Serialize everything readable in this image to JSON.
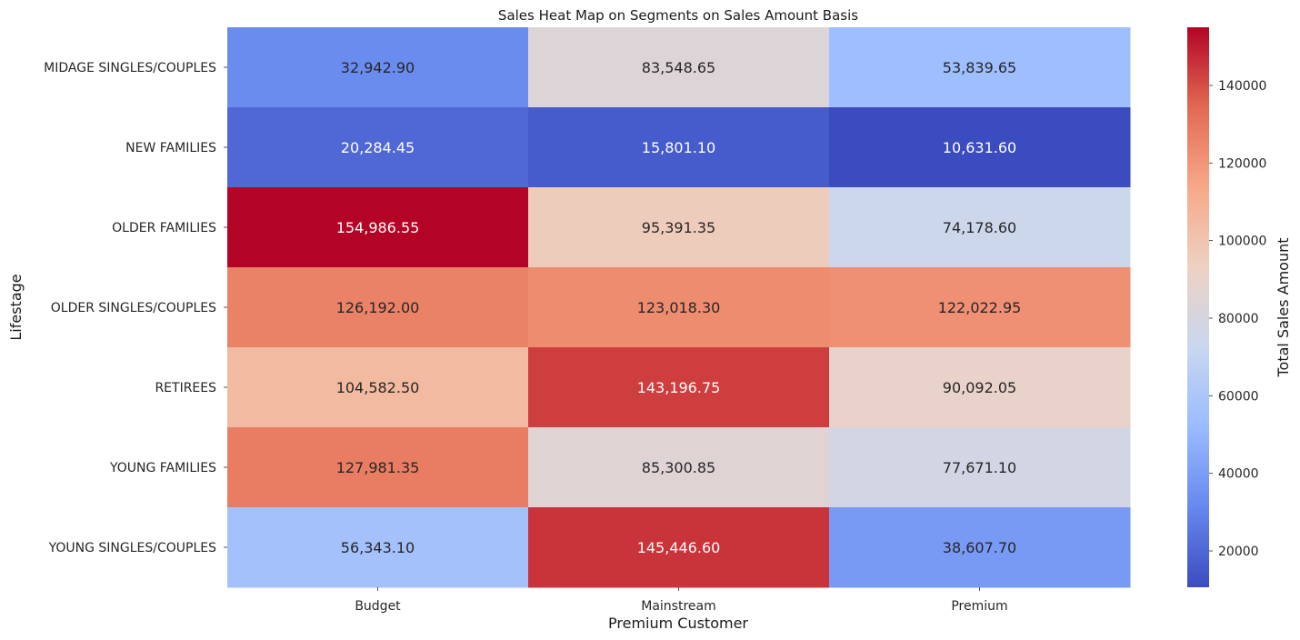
{
  "chart_data": {
    "type": "heatmap",
    "title": "Sales Heat Map on Segments on Sales Amount Basis",
    "xlabel": "Premium Customer",
    "ylabel": "Lifestage",
    "x_categories": [
      "Budget",
      "Mainstream",
      "Premium"
    ],
    "y_categories": [
      "MIDAGE SINGLES/COUPLES",
      "NEW FAMILIES",
      "OLDER FAMILIES",
      "OLDER SINGLES/COUPLES",
      "RETIREES",
      "YOUNG FAMILIES",
      "YOUNG SINGLES/COUPLES"
    ],
    "values": [
      [
        32942.9,
        83548.65,
        53839.65
      ],
      [
        20284.45,
        15801.1,
        10631.6
      ],
      [
        154986.55,
        95391.35,
        74178.6
      ],
      [
        126192.0,
        123018.3,
        122022.95
      ],
      [
        104582.5,
        143196.75,
        90092.05
      ],
      [
        127981.35,
        85300.85,
        77671.1
      ],
      [
        56343.1,
        145446.6,
        38607.7
      ]
    ],
    "value_labels": [
      [
        "32,942.90",
        "83,548.65",
        "53,839.65"
      ],
      [
        "20,284.45",
        "15,801.10",
        "10,631.60"
      ],
      [
        "154,986.55",
        "95,391.35",
        "74,178.60"
      ],
      [
        "126,192.00",
        "123,018.30",
        "122,022.95"
      ],
      [
        "104,582.50",
        "143,196.75",
        "90,092.05"
      ],
      [
        "127,981.35",
        "85,300.85",
        "77,671.10"
      ],
      [
        "56,343.10",
        "145,446.60",
        "38,607.70"
      ]
    ],
    "colormap": "coolwarm",
    "colormap_stops": [
      "#3b4cc0",
      "#6788ee",
      "#9abbff",
      "#c9d7f0",
      "#edd1c2",
      "#f7a889",
      "#e26952",
      "#b40426"
    ],
    "colorbar": {
      "label": "Total Sales Amount",
      "range": [
        10631.6,
        154986.55
      ],
      "ticks": [
        20000,
        40000,
        60000,
        80000,
        100000,
        120000,
        140000
      ],
      "tick_labels": [
        "20000",
        "40000",
        "60000",
        "80000",
        "100000",
        "120000",
        "140000"
      ]
    },
    "annotated": true,
    "grid": false
  }
}
